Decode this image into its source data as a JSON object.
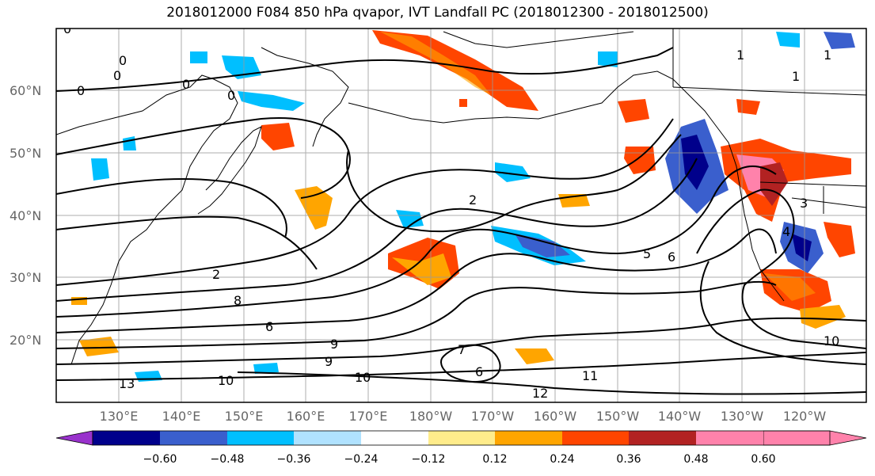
{
  "title": "2018012000 F084 850 hPa qvapor, IVT Landfall PC (2018012300 - 2018012500)",
  "lat_labels": [
    "60°N",
    "50°N",
    "40°N",
    "30°N",
    "20°N"
  ],
  "lon_labels": [
    "130°E",
    "140°E",
    "150°E",
    "160°E",
    "170°E",
    "180°W",
    "170°W",
    "160°W",
    "150°W",
    "140°W",
    "130°W",
    "120°W"
  ],
  "colorbar": {
    "ticks": [
      "−0.60",
      "−0.48",
      "−0.36",
      "−0.24",
      "−0.12",
      "0.12",
      "0.24",
      "0.36",
      "0.48",
      "0.60"
    ],
    "colors": [
      "#9932cc",
      "#00008b",
      "#3a5fcd",
      "#00bfff",
      "#b0e2ff",
      "#ffffff",
      "#ffec8b",
      "#ffa500",
      "#ff4500",
      "#b22222",
      "#ff82ab"
    ]
  },
  "contour_labels": [
    "0",
    "0",
    "0",
    "0",
    "0",
    "0",
    "1",
    "1",
    "1",
    "2",
    "2",
    "3",
    "4",
    "5",
    "6",
    "6",
    "6",
    "7",
    "8",
    "9",
    "9",
    "10",
    "10",
    "10",
    "11",
    "12",
    "13"
  ]
}
